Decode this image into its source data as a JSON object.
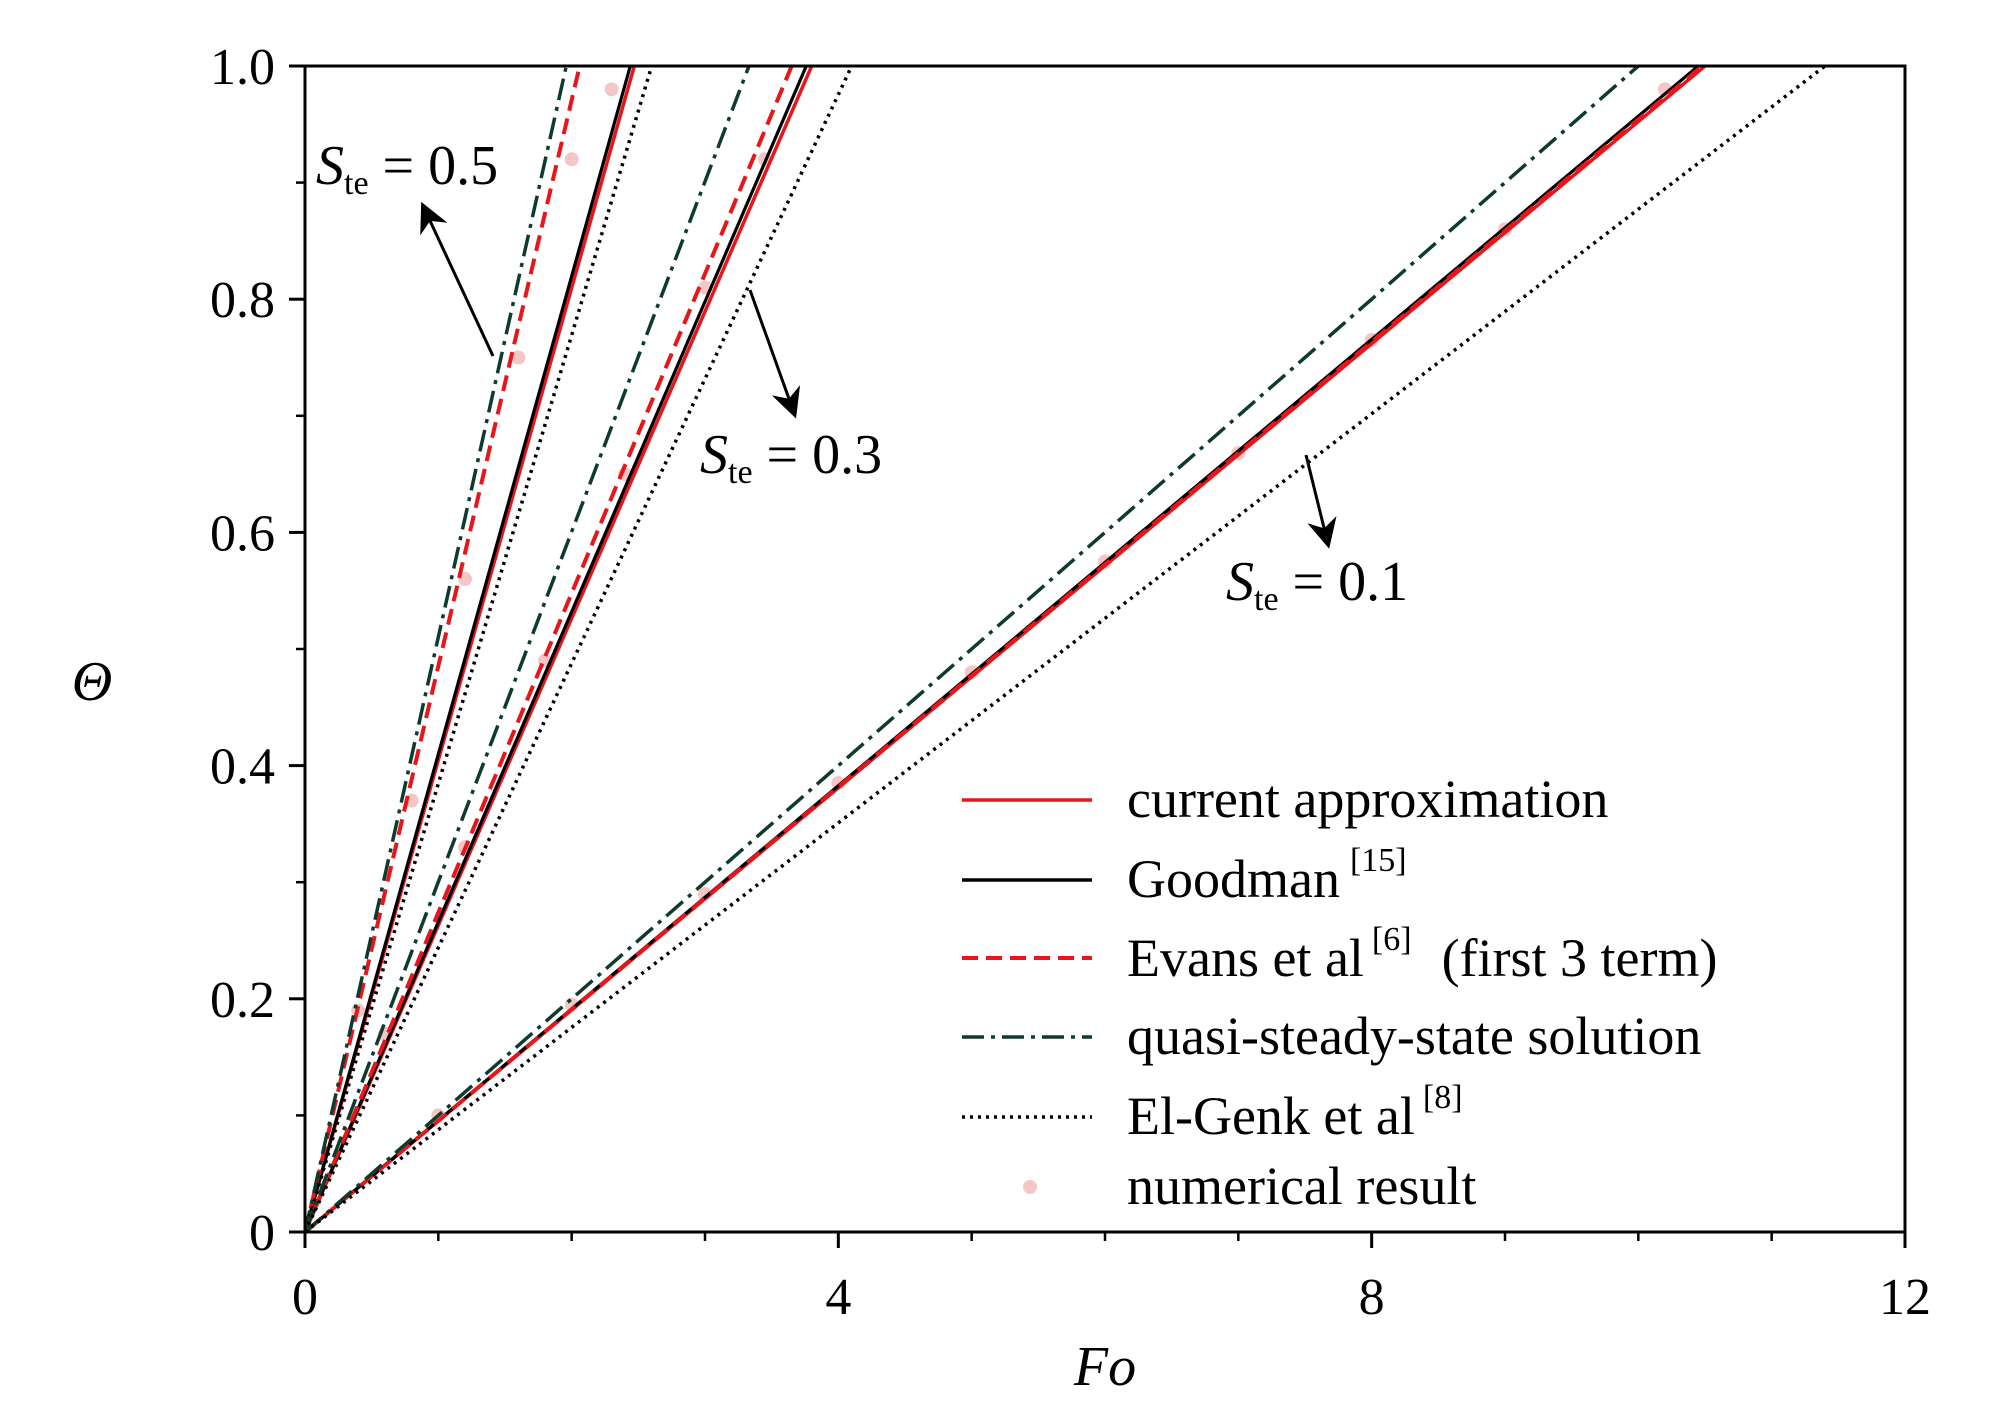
{
  "chart_data": {
    "type": "line",
    "xlabel": "Fo",
    "ylabel": "Θ",
    "xlim": [
      0,
      12
    ],
    "ylim": [
      0,
      1.0
    ],
    "x_ticks": [
      0,
      4,
      8,
      12
    ],
    "x_tick_labels": [
      "0",
      "4",
      "8",
      "12"
    ],
    "y_ticks": [
      0,
      0.2,
      0.4,
      0.6,
      0.8,
      1.0
    ],
    "y_tick_labels": [
      "0",
      "0.2",
      "0.4",
      "0.6",
      "0.8",
      "1.0"
    ],
    "grid": false,
    "legend_position": "bottom-right",
    "legend": [
      {
        "label": "current approximation",
        "sup": "",
        "suffix": "",
        "color": "#e8151b",
        "style": "solid"
      },
      {
        "label": "Goodman",
        "sup": "[15]",
        "suffix": "",
        "color": "#000000",
        "style": "solid"
      },
      {
        "label": "Evans et al",
        "sup": "[6]",
        "suffix": "(first 3 term)",
        "color": "#e8151b",
        "style": "dashed"
      },
      {
        "label": "quasi-steady-state solution",
        "sup": "",
        "suffix": "",
        "color": "#0f3a2e",
        "style": "dashdot"
      },
      {
        "label": "El-Genk et al",
        "sup": "[8]",
        "suffix": "",
        "color": "#000000",
        "style": "dotted"
      },
      {
        "label": "numerical result",
        "sup": "",
        "suffix": "",
        "color": "#f4c6c6",
        "style": "markers"
      }
    ],
    "annotations": [
      {
        "symbol": "S",
        "subscript": "te",
        "text": "= 0.5"
      },
      {
        "symbol": "S",
        "subscript": "te",
        "text": "= 0.3"
      },
      {
        "symbol": "S",
        "subscript": "te",
        "text": "= 0.1"
      }
    ],
    "series": [
      {
        "group": "Ste=0.5",
        "key": "current",
        "x": [
          0,
          2.47
        ],
        "y": [
          0,
          1.0
        ]
      },
      {
        "group": "Ste=0.5",
        "key": "goodman",
        "x": [
          0,
          2.44
        ],
        "y": [
          0,
          1.0
        ]
      },
      {
        "group": "Ste=0.5",
        "key": "evans",
        "x": [
          0,
          2.06
        ],
        "y": [
          0,
          1.0
        ]
      },
      {
        "group": "Ste=0.5",
        "key": "quasi",
        "x": [
          0,
          1.96
        ],
        "y": [
          0,
          1.0
        ]
      },
      {
        "group": "Ste=0.5",
        "key": "elgenk",
        "x": [
          0,
          2.6
        ],
        "y": [
          0,
          1.0
        ]
      },
      {
        "group": "Ste=0.5",
        "key": "numerical",
        "x": [
          0,
          0.4,
          0.8,
          1.2,
          1.6,
          2.0,
          2.3
        ],
        "y": [
          0,
          0.19,
          0.37,
          0.56,
          0.75,
          0.92,
          0.98
        ]
      },
      {
        "group": "Ste=0.3",
        "key": "current",
        "x": [
          0,
          3.8
        ],
        "y": [
          0,
          1.0
        ]
      },
      {
        "group": "Ste=0.3",
        "key": "goodman",
        "x": [
          0,
          3.76
        ],
        "y": [
          0,
          1.0
        ]
      },
      {
        "group": "Ste=0.3",
        "key": "evans",
        "x": [
          0,
          3.65
        ],
        "y": [
          0,
          1.0
        ]
      },
      {
        "group": "Ste=0.3",
        "key": "quasi",
        "x": [
          0,
          3.33
        ],
        "y": [
          0,
          1.0
        ]
      },
      {
        "group": "Ste=0.3",
        "key": "elgenk",
        "x": [
          0,
          4.1
        ],
        "y": [
          0,
          1.0
        ]
      },
      {
        "group": "Ste=0.3",
        "key": "numerical",
        "x": [
          0,
          0.6,
          1.2,
          1.8,
          2.4,
          3.0,
          3.45
        ],
        "y": [
          0,
          0.17,
          0.33,
          0.49,
          0.65,
          0.81,
          0.92
        ]
      },
      {
        "group": "Ste=0.1",
        "key": "current",
        "x": [
          0,
          10.5
        ],
        "y": [
          0,
          1.0
        ]
      },
      {
        "group": "Ste=0.1",
        "key": "goodman",
        "x": [
          0,
          10.45
        ],
        "y": [
          0,
          1.0
        ]
      },
      {
        "group": "Ste=0.1",
        "key": "evans",
        "x": [
          0,
          10.48
        ],
        "y": [
          0,
          1.0
        ]
      },
      {
        "group": "Ste=0.1",
        "key": "quasi",
        "x": [
          0,
          10.0
        ],
        "y": [
          0,
          1.0
        ]
      },
      {
        "group": "Ste=0.1",
        "key": "elgenk",
        "x": [
          0,
          11.4
        ],
        "y": [
          0,
          1.0
        ]
      },
      {
        "group": "Ste=0.1",
        "key": "numerical",
        "x": [
          0,
          1.0,
          2.0,
          3.0,
          4.0,
          5.0,
          6.0,
          7.0,
          8.0,
          9.0,
          10.2
        ],
        "y": [
          0,
          0.1,
          0.195,
          0.29,
          0.385,
          0.48,
          0.575,
          0.668,
          0.765,
          0.86,
          0.98
        ]
      }
    ]
  }
}
